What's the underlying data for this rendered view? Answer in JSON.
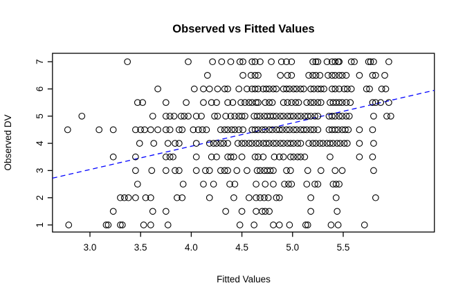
{
  "chart_data": {
    "type": "scatter",
    "title": "Observed vs Fitted Values",
    "xlabel": "Fitted Values",
    "ylabel": "Observed DV",
    "point_style": "open-circle",
    "point_color": "#000000",
    "background_color": "#ffffff",
    "grid": false,
    "legend": false,
    "xlim": [
      2.63,
      6.4
    ],
    "ylim": [
      0.74,
      7.31
    ],
    "x_tick_values": [
      3.0,
      3.5,
      4.0,
      4.5,
      5.0,
      5.5
    ],
    "x_tick_labels": [
      "3.0",
      "3.5",
      "4.0",
      "4.5",
      "5.0",
      "5.5"
    ],
    "y_tick_values": [
      1,
      2,
      3,
      4,
      5,
      6,
      7
    ],
    "y_tick_labels": [
      "1",
      "2",
      "3",
      "4",
      "5",
      "6",
      "7"
    ],
    "reference_line": {
      "style": "dashed",
      "color": "#0000ff",
      "x1": 2.63,
      "y1": 2.72,
      "x2": 6.4,
      "y2": 5.95
    },
    "rows": [
      {
        "y": 7.0,
        "x": [
          3.37,
          3.97,
          4.21,
          4.3,
          4.39,
          4.48,
          4.51,
          4.6,
          4.63,
          4.68,
          4.79,
          4.89,
          4.94,
          4.99,
          5.2,
          5.23,
          5.25,
          5.34,
          5.39,
          5.42,
          5.45,
          5.46,
          5.58,
          5.61,
          5.75,
          5.77,
          5.8,
          5.95
        ]
      },
      {
        "y": 6.5,
        "x": [
          4.16,
          4.51,
          4.59,
          4.63,
          4.66,
          4.88,
          4.95,
          4.99,
          5.16,
          5.2,
          5.23,
          5.27,
          5.35,
          5.39,
          5.42,
          5.46,
          5.49,
          5.53,
          5.66,
          5.79,
          5.82,
          5.91
        ]
      },
      {
        "y": 6.0,
        "x": [
          3.67,
          4.03,
          4.12,
          4.18,
          4.26,
          4.33,
          4.36,
          4.47,
          4.55,
          4.6,
          4.63,
          4.66,
          4.71,
          4.74,
          4.77,
          4.81,
          4.84,
          4.91,
          4.94,
          4.97,
          5.01,
          5.04,
          5.08,
          5.11,
          5.18,
          5.21,
          5.25,
          5.28,
          5.31,
          5.39,
          5.42,
          5.46,
          5.51,
          5.54,
          5.58,
          5.73,
          5.76,
          5.88,
          5.92
        ]
      },
      {
        "y": 5.5,
        "x": [
          3.47,
          3.52,
          3.75,
          3.95,
          4.12,
          4.2,
          4.25,
          4.36,
          4.41,
          4.49,
          4.53,
          4.57,
          4.6,
          4.64,
          4.66,
          4.73,
          4.77,
          4.8,
          4.91,
          4.95,
          4.99,
          5.03,
          5.06,
          5.14,
          5.18,
          5.21,
          5.25,
          5.28,
          5.37,
          5.4,
          5.43,
          5.46,
          5.49,
          5.53,
          5.57,
          5.79,
          5.82,
          5.87,
          5.95
        ]
      },
      {
        "y": 5.0,
        "x": [
          2.92,
          3.62,
          3.75,
          3.79,
          3.83,
          3.9,
          3.93,
          3.97,
          4.05,
          4.1,
          4.23,
          4.26,
          4.34,
          4.39,
          4.43,
          4.47,
          4.5,
          4.53,
          4.62,
          4.65,
          4.68,
          4.72,
          4.75,
          4.78,
          4.81,
          4.84,
          4.88,
          4.91,
          4.95,
          4.98,
          5.01,
          5.05,
          5.08,
          5.12,
          5.15,
          5.18,
          5.22,
          5.25,
          5.36,
          5.39,
          5.42,
          5.46,
          5.49,
          5.53,
          5.56,
          5.8,
          5.93,
          5.97
        ]
      },
      {
        "y": 4.5,
        "x": [
          2.78,
          3.09,
          3.23,
          3.45,
          3.5,
          3.54,
          3.6,
          3.67,
          3.75,
          3.79,
          3.88,
          3.91,
          4.02,
          4.07,
          4.11,
          4.15,
          4.29,
          4.33,
          4.36,
          4.4,
          4.43,
          4.47,
          4.51,
          4.6,
          4.63,
          4.66,
          4.7,
          4.73,
          4.77,
          4.8,
          4.84,
          4.87,
          4.9,
          4.94,
          4.97,
          5.01,
          5.04,
          5.08,
          5.11,
          5.14,
          5.18,
          5.21,
          5.25,
          5.36,
          5.39,
          5.42,
          5.45,
          5.49,
          5.52,
          5.55,
          5.66,
          5.79
        ]
      },
      {
        "y": 4.0,
        "x": [
          3.49,
          3.63,
          3.77,
          3.84,
          3.88,
          4.05,
          4.18,
          4.22,
          4.25,
          4.29,
          4.32,
          4.36,
          4.46,
          4.5,
          4.53,
          4.57,
          4.6,
          4.64,
          4.67,
          4.71,
          4.74,
          4.77,
          4.81,
          4.84,
          4.88,
          4.91,
          4.95,
          4.98,
          5.01,
          5.05,
          5.08,
          5.16,
          5.2,
          5.23,
          5.27,
          5.3,
          5.34,
          5.37,
          5.4,
          5.44,
          5.47,
          5.51,
          5.54,
          5.66,
          5.8
        ]
      },
      {
        "y": 3.5,
        "x": [
          3.23,
          3.45,
          3.75,
          3.79,
          3.82,
          4.05,
          4.2,
          4.25,
          4.36,
          4.39,
          4.42,
          4.5,
          4.63,
          4.66,
          4.71,
          4.82,
          4.87,
          4.91,
          4.98,
          5.01,
          5.05,
          5.08,
          5.12,
          5.37,
          5.66,
          5.79
        ]
      },
      {
        "y": 3.0,
        "x": [
          3.45,
          3.61,
          3.75,
          3.84,
          3.88,
          4.05,
          4.14,
          4.18,
          4.29,
          4.33,
          4.36,
          4.45,
          4.55,
          4.65,
          4.68,
          4.72,
          4.75,
          4.78,
          4.81,
          4.94,
          4.98,
          5.15,
          5.28,
          5.42,
          5.49,
          5.8
        ]
      },
      {
        "y": 2.5,
        "x": [
          3.47,
          3.92,
          4.12,
          4.22,
          4.38,
          4.43,
          4.64,
          4.73,
          4.81,
          4.92,
          4.96,
          4.99,
          5.14,
          5.22,
          5.25,
          5.4,
          5.43,
          5.46
        ]
      },
      {
        "y": 2.0,
        "x": [
          3.3,
          3.34,
          3.38,
          3.45,
          3.55,
          3.6,
          3.86,
          3.91,
          4.18,
          4.42,
          4.57,
          4.64,
          4.68,
          4.72,
          4.76,
          4.84,
          4.87,
          5.18,
          5.43,
          5.82
        ]
      },
      {
        "y": 1.5,
        "x": [
          3.23,
          3.62,
          3.75,
          4.34,
          4.5,
          4.64,
          4.7,
          4.73,
          4.77,
          5.18,
          5.44
        ]
      },
      {
        "y": 1.0,
        "x": [
          2.79,
          3.16,
          3.18,
          3.3,
          3.32,
          3.53,
          3.6,
          3.77,
          4.48,
          4.62,
          4.81,
          4.87,
          4.97,
          5.13,
          5.15,
          5.38,
          5.45,
          5.71
        ]
      }
    ]
  }
}
